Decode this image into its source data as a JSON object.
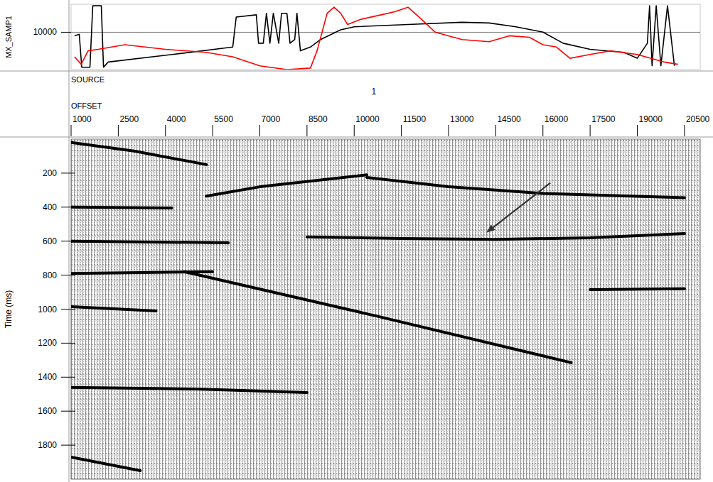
{
  "chart_data": [
    {
      "type": "line",
      "ylabel": "MX_SAMP1",
      "xlim": [
        1000,
        21000
      ],
      "ylim": [
        6000,
        13000
      ],
      "yticks": [
        10000
      ],
      "grid": true,
      "tick_labels": "y",
      "series": [
        {
          "color": "#000000",
          "x": [
            1110,
            1260,
            1340,
            1600,
            1690,
            1960,
            2030,
            2180,
            4210,
            6140,
            6250,
            6890,
            6960,
            7110,
            7210,
            7320,
            7430,
            7600,
            7690,
            7860,
            7960,
            8110,
            8180,
            8290,
            8610,
            8930,
            9570,
            10000,
            11710,
            13430,
            14290,
            15140,
            16000,
            16640,
            17500,
            18570,
            19000,
            19320,
            19390,
            19470,
            19600,
            19750,
            19960,
            20180
          ],
          "values": [
            9620,
            9780,
            6240,
            6240,
            12840,
            12840,
            6240,
            6810,
            7610,
            8410,
            11630,
            11870,
            8820,
            8820,
            12030,
            8820,
            12030,
            8820,
            12030,
            12030,
            8820,
            9220,
            12030,
            8010,
            8410,
            9220,
            10260,
            10590,
            10830,
            11070,
            10990,
            10590,
            10020,
            8820,
            8170,
            7850,
            7210,
            8820,
            12840,
            6400,
            12840,
            6400,
            12840,
            6400
          ]
        },
        {
          "color": "#ff0000",
          "x": [
            1110,
            1320,
            1540,
            1860,
            2710,
            4000,
            5290,
            6140,
            7000,
            7860,
            8610,
            8820,
            9140,
            9360,
            9570,
            9790,
            10210,
            10860,
            11290,
            11710,
            12140,
            12570,
            13430,
            14290,
            14930,
            15570,
            16000,
            16430,
            16860,
            17500,
            18140,
            19000,
            19860,
            20290
          ],
          "values": [
            7370,
            6560,
            8010,
            8170,
            8660,
            8170,
            7850,
            7370,
            6400,
            6000,
            6160,
            8010,
            12030,
            12680,
            12030,
            10830,
            11390,
            11870,
            12200,
            12680,
            11390,
            10020,
            9220,
            8980,
            9620,
            9460,
            8660,
            8410,
            7210,
            7610,
            8010,
            7610,
            6810,
            6560
          ]
        }
      ]
    },
    {
      "type": "wiggle",
      "title": "SOURCE",
      "subtitle": "1",
      "xlabel": "OFFSET",
      "ylabel": "Time (ms)",
      "xlim": [
        1000,
        21000
      ],
      "ylim": [
        0,
        2000
      ],
      "xticks": [
        1000,
        2500,
        4000,
        5500,
        7000,
        8500,
        10000,
        11500,
        13000,
        14500,
        16000,
        17500,
        19000,
        20500
      ],
      "yticks": [
        200,
        400,
        600,
        800,
        1000,
        1200,
        1400,
        1600,
        1800
      ],
      "annotations": [
        {
          "x": 14200,
          "y": 550
        }
      ],
      "series": [
        {
          "color": "#000000",
          "x": [
            8500,
            11500,
            14500,
            17500,
            20500
          ],
          "values": [
            575,
            585,
            590,
            580,
            555
          ]
        },
        {
          "color": "#000000",
          "x": [
            4600,
            10700,
            16900
          ],
          "values": [
            780,
            1040,
            1315
          ]
        },
        {
          "color": "#000000",
          "x": [
            5300,
            7000,
            10400
          ],
          "values": [
            335,
            280,
            210
          ]
        },
        {
          "color": "#000000",
          "x": [
            10400,
            13000,
            16000,
            20500
          ],
          "values": [
            225,
            280,
            320,
            345
          ]
        },
        {
          "color": "#000000",
          "x": [
            1000,
            3000,
            5300
          ],
          "values": [
            20,
            70,
            150
          ]
        },
        {
          "color": "#000000",
          "x": [
            1000,
            4200
          ],
          "values": [
            400,
            405
          ]
        },
        {
          "color": "#000000",
          "x": [
            1000,
            5500
          ],
          "values": [
            790,
            780
          ]
        },
        {
          "color": "#000000",
          "x": [
            1000,
            3700
          ],
          "values": [
            985,
            1010
          ]
        },
        {
          "color": "#000000",
          "x": [
            1000,
            5000,
            8500
          ],
          "values": [
            1460,
            1470,
            1490
          ]
        },
        {
          "color": "#000000",
          "x": [
            17500,
            20500
          ],
          "values": [
            885,
            880
          ]
        },
        {
          "color": "#000000",
          "x": [
            1000,
            3200
          ],
          "values": [
            1870,
            1950
          ]
        },
        {
          "color": "#000000",
          "x": [
            1000,
            6000
          ],
          "values": [
            600,
            610
          ]
        }
      ]
    }
  ]
}
